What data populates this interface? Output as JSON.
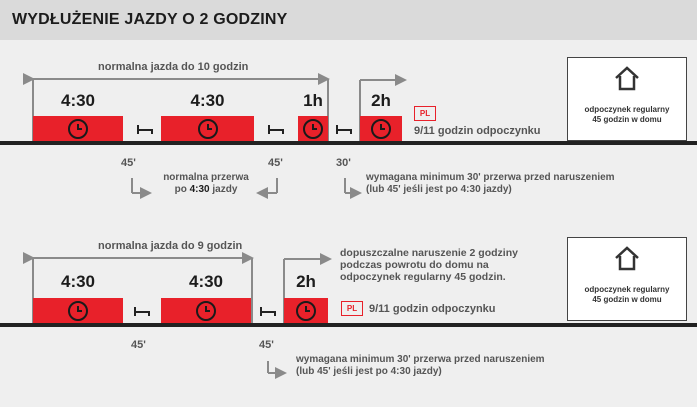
{
  "header": {
    "title": "WYDŁUŻENIE JAZDY O 2 GODZINY"
  },
  "top": {
    "span_label": "normalna jazda do 10 godzin",
    "blocks": [
      "4:30",
      "4:30",
      "1h",
      "2h"
    ],
    "breaks": [
      "45'",
      "45'",
      "30'"
    ],
    "pl_badge": "PL",
    "rest_label": "9/11 godzin odpoczynku",
    "note_break_line1": "normalna przerwa",
    "note_break_line2a": "po ",
    "note_break_line2b": "4:30",
    "note_break_line2c": " jazdy",
    "note_min_line1": "wymagana minimum 30' przerwa przed naruszeniem",
    "note_min_line2": "(lub 45' jeśli jest po 4:30 jazdy)",
    "home_line1": "odpoczynek regularny",
    "home_line2": "45 godzin w domu"
  },
  "bottom": {
    "span_label": "normalna jazda do 9 godzin",
    "blocks": [
      "4:30",
      "4:30",
      "2h"
    ],
    "breaks": [
      "45'",
      "45'"
    ],
    "pl_badge": "PL",
    "rest_label": "9/11 godzin odpoczynku",
    "allow_line1": "dopuszczalne naruszenie 2 godziny",
    "allow_line2": "podczas powrotu do domu na",
    "allow_line3": "odpoczynek regularny 45 godzin.",
    "note_min_line1": "wymagana minimum 30' przerwa przed naruszeniem",
    "note_min_line2": "(lub 45' jeśli jest po 4:30 jazdy)",
    "home_line1": "odpoczynek regularny",
    "home_line2": "45 godzin w domu"
  },
  "colors": {
    "accent": "#e8212a",
    "panel": "#efefef",
    "header": "#dadada",
    "text": "#1c1c1c"
  },
  "icons": [
    "clock-icon",
    "bed-icon",
    "home-icon",
    "arrow-icon"
  ]
}
